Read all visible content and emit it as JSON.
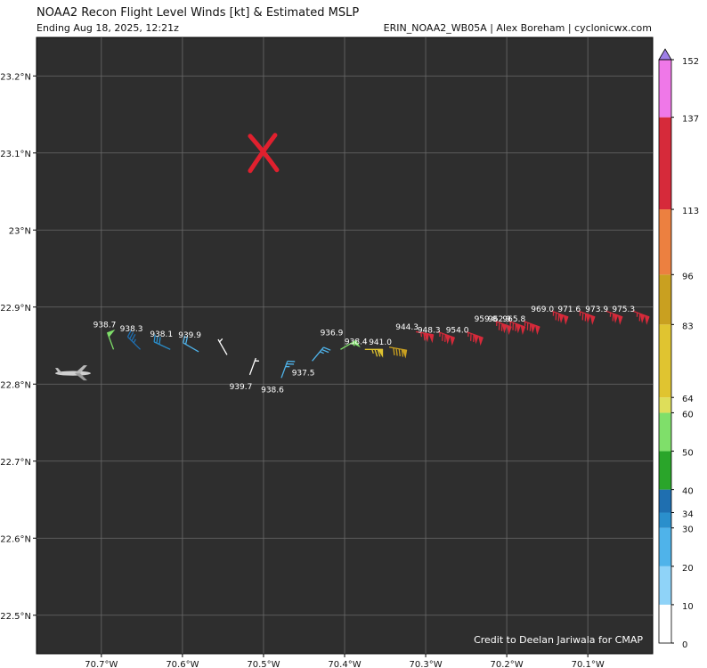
{
  "header": {
    "title": "NOAA2 Recon Flight Level Winds [kt] & Estimated MSLP",
    "subtitle": "Ending Aug 18, 2025, 12:21z",
    "credit_top": "ERIN_NOAA2_WB05A | Alex Boreham | cyclonicwx.com"
  },
  "footer": {
    "credit": "Credit to Deelan Jariwala for CMAP"
  },
  "chart_data": {
    "type": "scatter",
    "xlim": [
      -70.78,
      -70.02
    ],
    "ylim": [
      22.45,
      23.25
    ],
    "x_ticks": [
      -70.7,
      -70.6,
      -70.5,
      -70.4,
      -70.3,
      -70.2,
      -70.1
    ],
    "x_tick_labels": [
      "70.7°W",
      "70.6°W",
      "70.5°W",
      "70.4°W",
      "70.3°W",
      "70.2°W",
      "70.1°W"
    ],
    "y_ticks": [
      22.5,
      22.6,
      22.7,
      22.8,
      22.9,
      23.0,
      23.1,
      23.2
    ],
    "y_tick_labels": [
      "22.5°N",
      "22.6°N",
      "22.7°N",
      "22.8°N",
      "22.9°N",
      "23°N",
      "23.1°N",
      "23.2°N"
    ],
    "grid": true,
    "background": "#2e2e2e",
    "center_marker": {
      "lon": -70.5,
      "lat": 23.1,
      "symbol": "X",
      "color": "#e0202e"
    },
    "aircraft": {
      "lon": -70.735,
      "lat": 22.814
    },
    "colorbar": {
      "levels": [
        0,
        10,
        20,
        30,
        34,
        40,
        50,
        60,
        64,
        83,
        96,
        113,
        137,
        152
      ],
      "colors": [
        "#ffffff",
        "#8fd3f8",
        "#4fb3ea",
        "#2a8fcc",
        "#1f6fb0",
        "#2aa52a",
        "#7fdf6a",
        "#dede5a",
        "#e0c430",
        "#c9a020",
        "#ec8040",
        "#d62a3a",
        "#ef78e8",
        "#a050d8",
        "#9f7fe8"
      ]
    },
    "observations": [
      {
        "lon": -70.685,
        "lat": 22.845,
        "wind": 52,
        "mslp": "938.7",
        "dir": 340
      },
      {
        "lon": -70.652,
        "lat": 22.845,
        "wind": 34,
        "mslp": "938.3",
        "dir": 315
      },
      {
        "lon": -70.615,
        "lat": 22.845,
        "wind": 31,
        "mslp": "938.1",
        "dir": 295
      },
      {
        "lon": -70.58,
        "lat": 22.842,
        "wind": 20,
        "mslp": "939.9",
        "dir": 300
      },
      {
        "lon": -70.545,
        "lat": 22.838,
        "wind": 6,
        "mslp": "",
        "dir": 330
      },
      {
        "lon": -70.517,
        "lat": 22.812,
        "wind": 6,
        "mslp": "939.7",
        "dir": 20
      },
      {
        "lon": -70.478,
        "lat": 22.808,
        "wind": 25,
        "mslp": "938.6",
        "dir": 20
      },
      {
        "lon": -70.44,
        "lat": 22.83,
        "wind": 27,
        "mslp": "937.5",
        "dir": 40
      },
      {
        "lon": -70.405,
        "lat": 22.845,
        "wind": 55,
        "mslp": "936.9",
        "dir": 60
      },
      {
        "lon": -70.375,
        "lat": 22.845,
        "wind": 75,
        "mslp": "938.4",
        "dir": 90
      },
      {
        "lon": -70.345,
        "lat": 22.848,
        "wind": 90,
        "mslp": "941.0",
        "dir": 100
      },
      {
        "lon": -70.312,
        "lat": 22.868,
        "wind": 115,
        "mslp": "944.3",
        "dir": 100
      },
      {
        "lon": -70.285,
        "lat": 22.868,
        "wind": 125,
        "mslp": "948.3",
        "dir": 110
      },
      {
        "lon": -70.25,
        "lat": 22.868,
        "wind": 125,
        "mslp": "954.0",
        "dir": 110
      },
      {
        "lon": -70.215,
        "lat": 22.882,
        "wind": 125,
        "mslp": "959.8",
        "dir": 110
      },
      {
        "lon": -70.198,
        "lat": 22.882,
        "wind": 125,
        "mslp": "962.9",
        "dir": 110
      },
      {
        "lon": -70.18,
        "lat": 22.882,
        "wind": 125,
        "mslp": "965.8",
        "dir": 110
      },
      {
        "lon": -70.145,
        "lat": 22.895,
        "wind": 125,
        "mslp": "969.0",
        "dir": 110
      },
      {
        "lon": -70.112,
        "lat": 22.895,
        "wind": 125,
        "mslp": "971.6",
        "dir": 110
      },
      {
        "lon": -70.078,
        "lat": 22.895,
        "wind": 115,
        "mslp": "973.9",
        "dir": 110
      },
      {
        "lon": -70.045,
        "lat": 22.895,
        "wind": 115,
        "mslp": "975.3",
        "dir": 110
      }
    ]
  }
}
